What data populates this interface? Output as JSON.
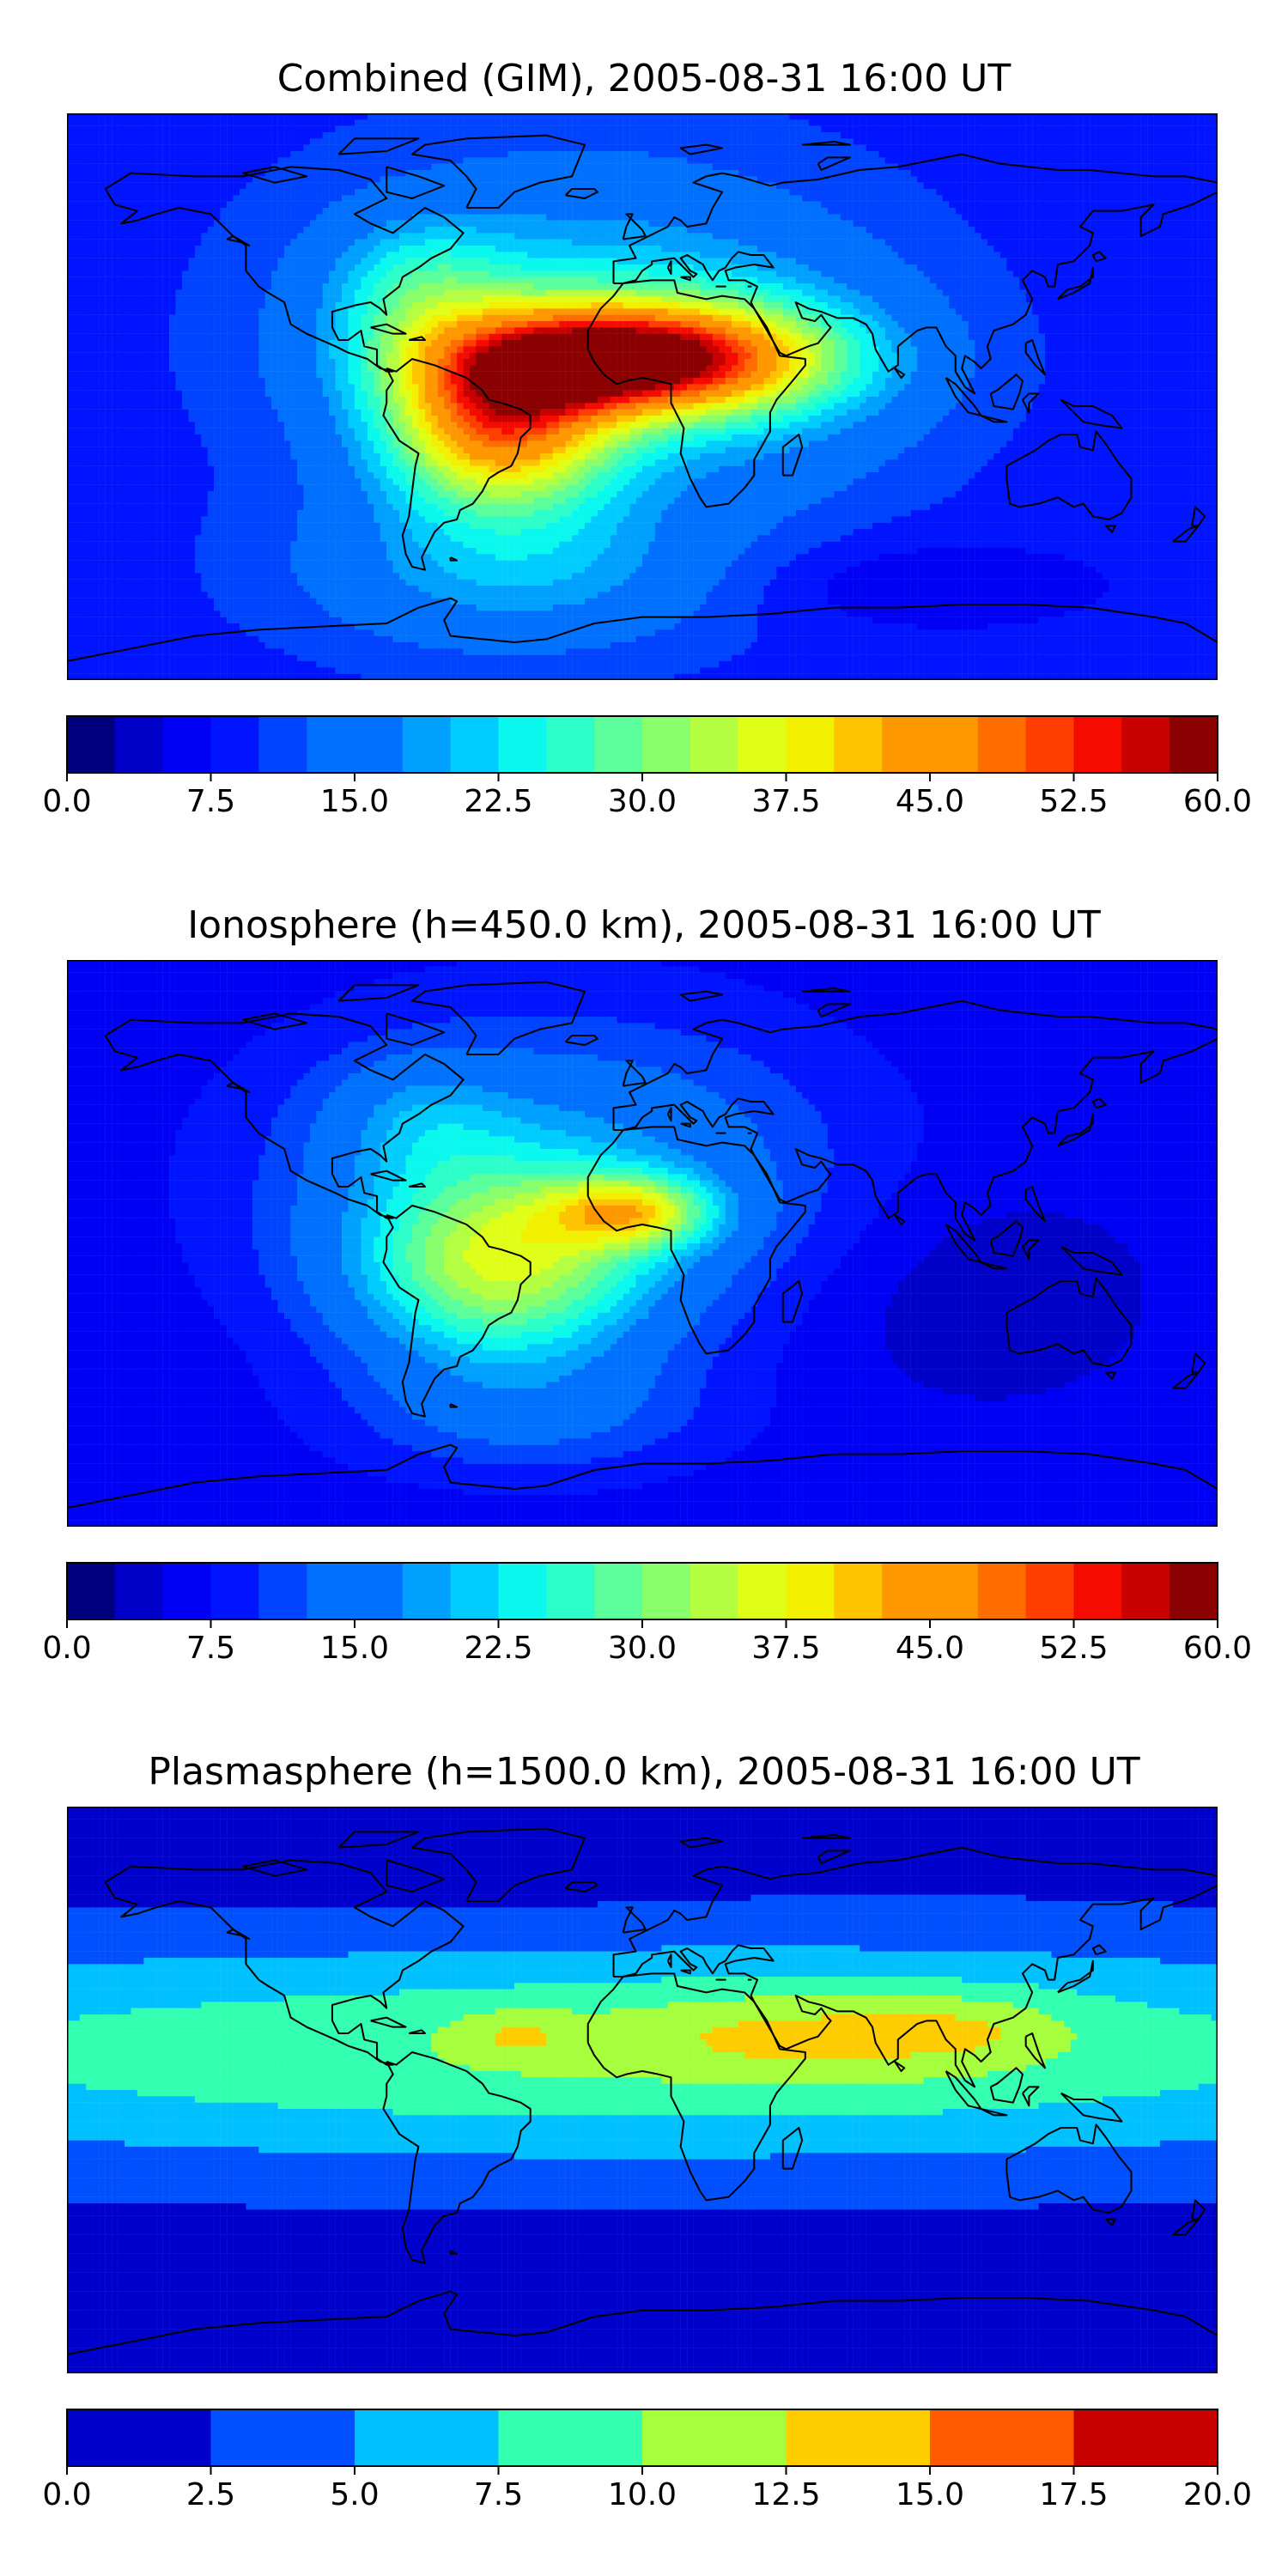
{
  "panels": [
    {
      "title": "Combined (GIM), 2005-08-31 16:00 UT",
      "cmap_colors": [
        "#00007f",
        "#0000c8",
        "#0000f5",
        "#0014ff",
        "#0044ff",
        "#0070ff",
        "#00a0ff",
        "#00ccff",
        "#0af8ee",
        "#2cffca",
        "#5bff9b",
        "#8aff6c",
        "#b4ff42",
        "#dfff18",
        "#f2f000",
        "#ffc400",
        "#ff9800",
        "#ff6c00",
        "#ff3e00",
        "#f50b00",
        "#c80000",
        "#8b0000"
      ],
      "colorbar": {
        "min": 0,
        "max": 60,
        "levels": 24,
        "ticks": [
          "0.0",
          "7.5",
          "15.0",
          "22.5",
          "30.0",
          "37.5",
          "45.0",
          "52.5",
          "60.0"
        ]
      },
      "field": {
        "base": 9,
        "features": [
          {
            "lon": -5,
            "lat": 12,
            "rlon": 40,
            "rlat": 12,
            "amp": 42
          },
          {
            "lon": -45,
            "lat": -10,
            "rlon": 25,
            "rlat": 18,
            "amp": 30
          },
          {
            "lon": -20,
            "lat": 20,
            "rlon": 55,
            "rlat": 35,
            "amp": 14
          },
          {
            "lon": -70,
            "lat": 35,
            "rlon": 20,
            "rlat": 15,
            "amp": 10
          },
          {
            "lon": -40,
            "lat": -55,
            "rlon": 45,
            "rlat": 18,
            "amp": 10
          },
          {
            "lon": 45,
            "lat": 10,
            "rlon": 35,
            "rlat": 25,
            "amp": 6
          },
          {
            "lon": 90,
            "lat": -60,
            "rlon": 40,
            "rlat": 10,
            "amp": -4
          }
        ]
      }
    },
    {
      "title": "Ionosphere  (h=450.0 km), 2005-08-31 16:00 UT",
      "cmap_colors": [
        "#00007f",
        "#0000c8",
        "#0000f5",
        "#0014ff",
        "#0044ff",
        "#0070ff",
        "#00a0ff",
        "#00ccff",
        "#0af8ee",
        "#2cffca",
        "#5bff9b",
        "#8aff6c",
        "#b4ff42",
        "#dfff18",
        "#f2f000",
        "#ffc400",
        "#ff9800",
        "#ff6c00",
        "#ff3e00",
        "#f50b00",
        "#c80000",
        "#8b0000"
      ],
      "colorbar": {
        "min": 0,
        "max": 60,
        "levels": 24,
        "ticks": [
          "0.0",
          "7.5",
          "15.0",
          "22.5",
          "30.0",
          "37.5",
          "45.0",
          "52.5",
          "60.0"
        ]
      },
      "field": {
        "base": 6,
        "features": [
          {
            "lon": -3,
            "lat": 10,
            "rlon": 18,
            "rlat": 8,
            "amp": 20
          },
          {
            "lon": -45,
            "lat": -8,
            "rlon": 32,
            "rlat": 22,
            "amp": 22
          },
          {
            "lon": -25,
            "lat": 20,
            "rlon": 60,
            "rlat": 35,
            "amp": 12
          },
          {
            "lon": -70,
            "lat": 40,
            "rlon": 20,
            "rlat": 14,
            "amp": 6
          },
          {
            "lon": -35,
            "lat": -55,
            "rlon": 40,
            "rlat": 14,
            "amp": 6
          },
          {
            "lon": 100,
            "lat": -15,
            "rlon": 40,
            "rlat": 25,
            "amp": -3
          }
        ]
      }
    },
    {
      "title": "Plasmasphere (h=1500.0 km), 2005-08-31 16:00 UT",
      "cmap_colors": [
        "#0000cd",
        "#0050ff",
        "#00c0ff",
        "#33ffb0",
        "#a6ff3c",
        "#ffcc00",
        "#ff5a00",
        "#c80000"
      ],
      "colorbar": {
        "min": 0,
        "max": 20,
        "levels": 8,
        "ticks": [
          "0.0",
          "2.5",
          "5.0",
          "7.5",
          "10.0",
          "12.5",
          "15.0",
          "17.5",
          "20.0"
        ]
      },
      "field": {
        "base": 1.2,
        "features": [
          {
            "lon": 0,
            "lat": 12,
            "rlon": 260,
            "rlat": 26,
            "amp": 8.6
          },
          {
            "lon": 55,
            "lat": 18,
            "rlon": 45,
            "rlat": 10,
            "amp": 4
          },
          {
            "lon": -40,
            "lat": 17,
            "rlon": 14,
            "rlat": 6,
            "amp": 3
          },
          {
            "lon": 105,
            "lat": 20,
            "rlon": 20,
            "rlat": 8,
            "amp": 2
          },
          {
            "lon": -70,
            "lat": 80,
            "rlon": 60,
            "rlat": 20,
            "amp": -1
          }
        ]
      }
    }
  ]
}
